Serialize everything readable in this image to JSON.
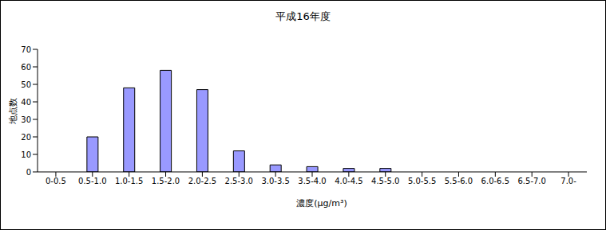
{
  "chart_data": {
    "type": "bar",
    "title": "平成16年度",
    "xlabel": "濃度(μg/m³)",
    "ylabel": "地点数",
    "categories": [
      "0-0.5",
      "0.5-1.0",
      "1.0-1.5",
      "1.5-2.0",
      "2.0-2.5",
      "2.5-3.0",
      "3.0-3.5",
      "3.5-4.0",
      "4.0-4.5",
      "4.5-5.0",
      "5.0-5.5",
      "5.5-6.0",
      "6.0-6.5",
      "6.5-7.0",
      "7.0-"
    ],
    "values": [
      0,
      20,
      48,
      58,
      47,
      12,
      4,
      3,
      2,
      2,
      0,
      0,
      0,
      0,
      0
    ],
    "color": "#9999ff",
    "ylim": [
      0,
      70
    ],
    "yticks": [
      0,
      10,
      20,
      30,
      40,
      50,
      60,
      70
    ],
    "grid": false
  }
}
